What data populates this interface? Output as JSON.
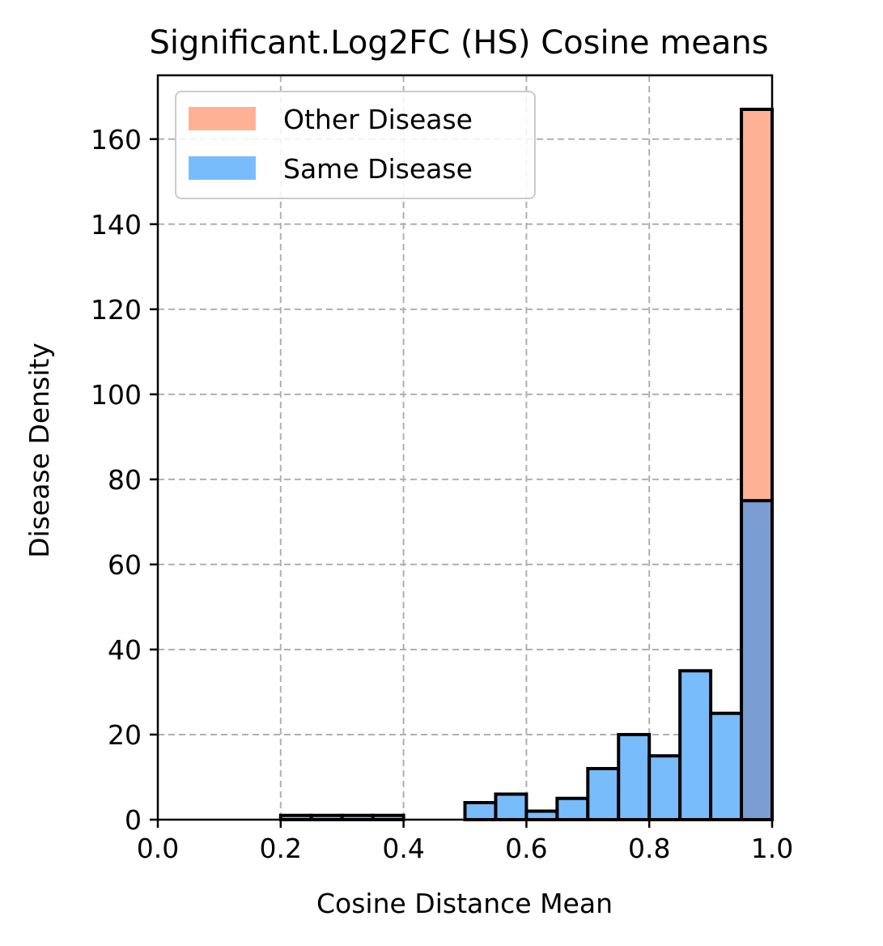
{
  "chart_data": {
    "type": "bar",
    "title": "Significant.Log2FC (HS) Cosine means",
    "xlabel": "Cosine Distance Mean",
    "ylabel": "Disease Density",
    "xlim": [
      0.0,
      1.0
    ],
    "ylim": [
      0,
      175
    ],
    "xticks": [
      "0.0",
      "0.2",
      "0.4",
      "0.6",
      "0.8",
      "1.0"
    ],
    "yticks": [
      "0",
      "20",
      "40",
      "60",
      "80",
      "100",
      "120",
      "140",
      "160"
    ],
    "grid": true,
    "legend_position": "top-left",
    "bins": [
      [
        0.2,
        0.25
      ],
      [
        0.25,
        0.3
      ],
      [
        0.3,
        0.35
      ],
      [
        0.35,
        0.4
      ],
      [
        0.5,
        0.55
      ],
      [
        0.55,
        0.6
      ],
      [
        0.6,
        0.65
      ],
      [
        0.65,
        0.7
      ],
      [
        0.7,
        0.75
      ],
      [
        0.75,
        0.8
      ],
      [
        0.8,
        0.85
      ],
      [
        0.85,
        0.9
      ],
      [
        0.9,
        0.95
      ],
      [
        0.95,
        1.0
      ]
    ],
    "series": [
      {
        "name": "Other Disease",
        "color": "#ffb196",
        "values": [
          0,
          0,
          0,
          0,
          0,
          0,
          0,
          0,
          0,
          0,
          0,
          0,
          0,
          167
        ]
      },
      {
        "name": "Same Disease",
        "color": "#79bcfc",
        "values": [
          1,
          1,
          1,
          1,
          4,
          6,
          2,
          5,
          12,
          20,
          15,
          35,
          25,
          75
        ]
      }
    ],
    "overlap_color": "#7a9dd3"
  }
}
